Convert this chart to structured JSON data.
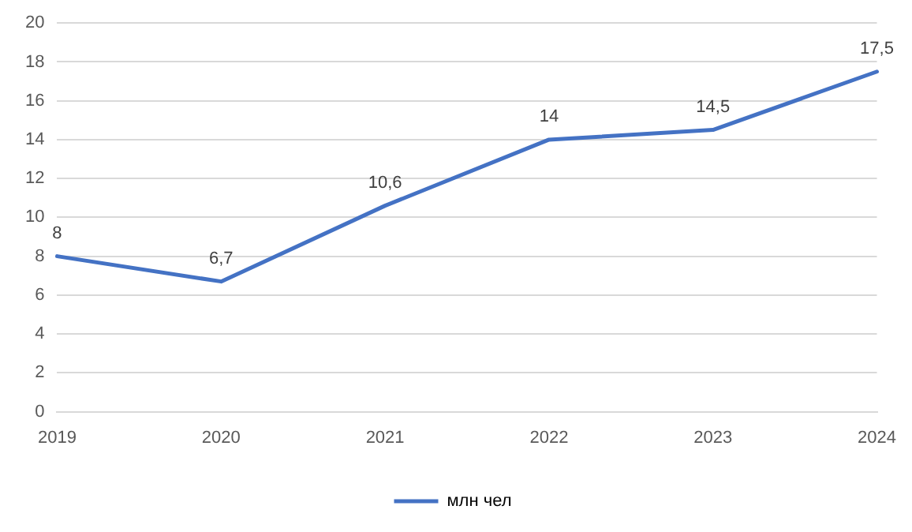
{
  "chart_data": {
    "type": "line",
    "categories": [
      "2019",
      "2020",
      "2021",
      "2022",
      "2023",
      "2024"
    ],
    "series": [
      {
        "name": "млн чел",
        "color": "#4472c4",
        "values": [
          8,
          6.7,
          10.6,
          14,
          14.5,
          17.5
        ],
        "value_labels": [
          "8",
          "6,7",
          "10,6",
          "14",
          "14,5",
          "17,5"
        ]
      }
    ],
    "ylim": [
      0,
      20
    ],
    "yticks": [
      0,
      2,
      4,
      6,
      8,
      10,
      12,
      14,
      16,
      18,
      20
    ],
    "grid": "y",
    "legend": "bottom",
    "marker": "none",
    "line_style": "solid"
  }
}
